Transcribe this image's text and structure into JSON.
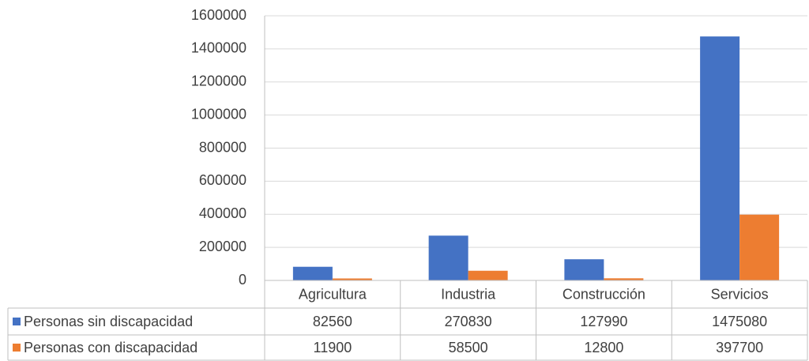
{
  "chart_data": {
    "type": "bar",
    "categories": [
      "Agricultura",
      "Industria",
      "Construcción",
      "Servicios"
    ],
    "series": [
      {
        "name": "Personas sin discapacidad",
        "color": "#4472c4",
        "values": [
          82560,
          270830,
          127990,
          1475080
        ]
      },
      {
        "name": "Personas con discapacidad",
        "color": "#ed7d31",
        "values": [
          11900,
          58500,
          12800,
          397700
        ]
      }
    ],
    "ylim": [
      0,
      1600000
    ],
    "yticks": [
      0,
      200000,
      400000,
      600000,
      800000,
      1000000,
      1200000,
      1400000,
      1600000
    ],
    "grid": true
  }
}
